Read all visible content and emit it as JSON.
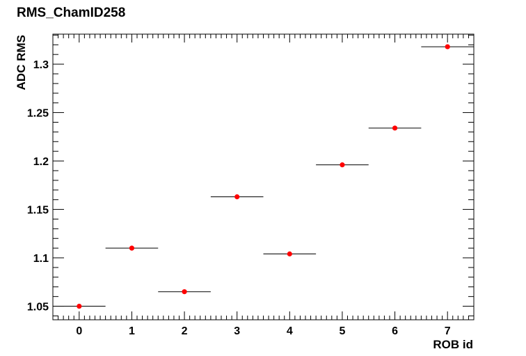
{
  "chart_data": {
    "type": "scatter",
    "title": "RMS_ChamID258",
    "xlabel": "ROB id",
    "ylabel": "ADC RMS",
    "xlim": [
      -0.5,
      7.5
    ],
    "ylim": [
      1.036,
      1.331
    ],
    "x_ticks": [
      "0",
      "1",
      "2",
      "3",
      "4",
      "5",
      "6",
      "7"
    ],
    "y_ticks": [
      "1.05",
      "1.1",
      "1.15",
      "1.2",
      "1.25",
      "1.3"
    ],
    "grid": false,
    "marker_color": "#ff0000",
    "x": [
      0,
      1,
      2,
      3,
      4,
      5,
      6,
      7
    ],
    "y": [
      1.05,
      1.11,
      1.065,
      1.163,
      1.104,
      1.196,
      1.234,
      1.318
    ],
    "x_error": [
      0.5,
      0.5,
      0.5,
      0.5,
      0.5,
      0.5,
      0.5,
      0.5
    ]
  }
}
